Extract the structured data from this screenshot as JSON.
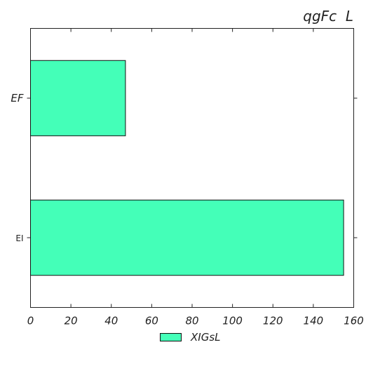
{
  "chart_data": {
    "type": "bar",
    "orientation": "horizontal",
    "title": "qgFc  L",
    "categories": [
      "EF",
      "EI"
    ],
    "series": [
      {
        "name": "XIGsL",
        "values": [
          47,
          155
        ],
        "color": "#44ffb8"
      }
    ],
    "xlim": [
      0,
      160
    ],
    "x_ticks": [
      "0",
      "20",
      "40",
      "60",
      "80",
      "100",
      "120",
      "140",
      "160"
    ],
    "grid": false,
    "legend_position": "bottom-center"
  }
}
